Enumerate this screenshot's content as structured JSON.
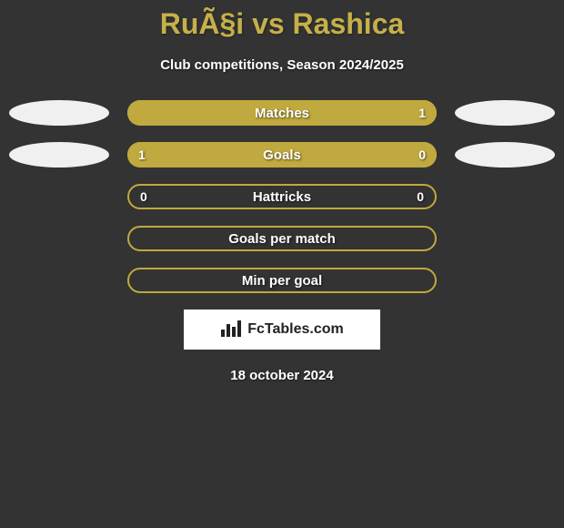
{
  "title": "RuÃ§i vs Rashica",
  "subtitle": "Club competitions, Season 2024/2025",
  "colors": {
    "background": "#333333",
    "accent": "#c0a93e",
    "title": "#c5b04a",
    "border": "#c0a93e",
    "ellipse": "#f0f0f0",
    "logo_bg": "#ffffff",
    "logo_text": "#222222"
  },
  "rows": [
    {
      "label": "Matches",
      "left_val": "",
      "right_val": "1",
      "left_pct": 0,
      "right_pct": 100,
      "show_left_ellipse": true,
      "show_right_ellipse": true,
      "bordered": false
    },
    {
      "label": "Goals",
      "left_val": "1",
      "right_val": "0",
      "left_pct": 77,
      "right_pct": 23,
      "show_left_ellipse": true,
      "show_right_ellipse": true,
      "bordered": false
    },
    {
      "label": "Hattricks",
      "left_val": "0",
      "right_val": "0",
      "left_pct": 0,
      "right_pct": 0,
      "show_left_ellipse": false,
      "show_right_ellipse": false,
      "bordered": true
    },
    {
      "label": "Goals per match",
      "left_val": "",
      "right_val": "",
      "left_pct": 0,
      "right_pct": 0,
      "show_left_ellipse": false,
      "show_right_ellipse": false,
      "bordered": true
    },
    {
      "label": "Min per goal",
      "left_val": "",
      "right_val": "",
      "left_pct": 0,
      "right_pct": 0,
      "show_left_ellipse": false,
      "show_right_ellipse": false,
      "bordered": true
    }
  ],
  "logo": {
    "text": "FcTables.com",
    "icon": "bar-chart-icon"
  },
  "date": "18 october 2024"
}
